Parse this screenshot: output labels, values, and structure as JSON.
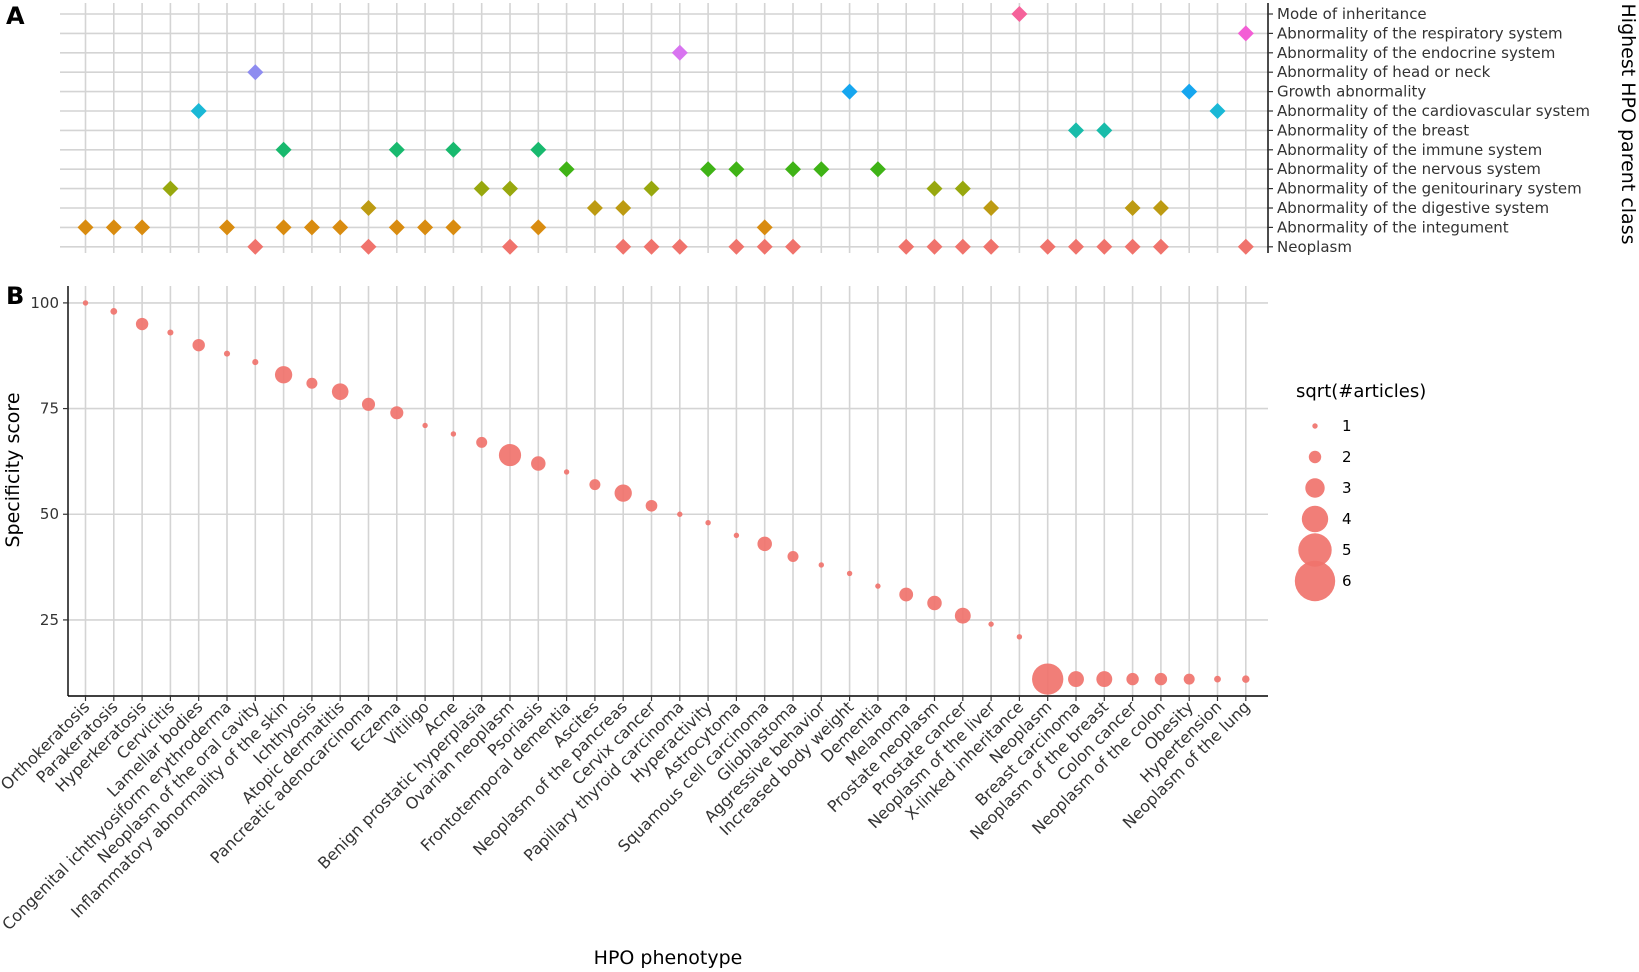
{
  "chart_data": [
    {
      "panel": "A",
      "type": "scatter",
      "title": "",
      "xlabel": "",
      "ylabel": "Highest HPO parent class",
      "categories": [
        "Orthokeratosis",
        "Parakeratosis",
        "Hyperkeratosis",
        "Cervicitis",
        "Lamellar bodies",
        "Congenital ichthyosiform erythroderma",
        "Neoplasm of the oral cavity",
        "Inflammatory abnormality of the skin",
        "Ichthyosis",
        "Atopic dermatitis",
        "Pancreatic adenocarcinoma",
        "Eczema",
        "Vitiligo",
        "Acne",
        "Benign prostatic hyperplasia",
        "Ovarian neoplasm",
        "Psoriasis",
        "Frontotemporal dementia",
        "Ascites",
        "Neoplasm of the pancreas",
        "Cervix cancer",
        "Papillary thyroid carcinoma",
        "Hyperactivity",
        "Astrocytoma",
        "Squamous cell carcinoma",
        "Glioblastoma",
        "Aggressive behavior",
        "Increased body weight",
        "Dementia",
        "Melanoma",
        "Prostate neoplasm",
        "Prostate cancer",
        "Neoplasm of the liver",
        "X-linked inheritance",
        "Neoplasm",
        "Breast carcinoma",
        "Neoplasm of the breast",
        "Colon cancer",
        "Neoplasm of the colon",
        "Obesity",
        "Hypertension",
        "Neoplasm of the lung"
      ],
      "classes": [
        "Neoplasm",
        "Abnormality of the integument",
        "Abnormality of the digestive system",
        "Abnormality of the genitourinary system",
        "Abnormality of the nervous system",
        "Abnormality of the immune system",
        "Abnormality of the breast",
        "Abnormality of the cardiovascular system",
        "Growth abnormality",
        "Abnormality of head or neck",
        "Abnormality of the endocrine system",
        "Abnormality of the respiratory system",
        "Mode of inheritance"
      ],
      "class_colors": [
        "#f0736c",
        "#d98c10",
        "#bd9b12",
        "#98a80e",
        "#3fb316",
        "#18b96e",
        "#19bcaa",
        "#1ab8d6",
        "#16a6ef",
        "#8e8cf0",
        "#d874f0",
        "#f35ed5",
        "#f5629a"
      ],
      "points": [
        {
          "x": 0,
          "y": 1
        },
        {
          "x": 1,
          "y": 1
        },
        {
          "x": 2,
          "y": 1
        },
        {
          "x": 3,
          "y": 3
        },
        {
          "x": 4,
          "y": 7
        },
        {
          "x": 5,
          "y": 1
        },
        {
          "x": 6,
          "y": 0
        },
        {
          "x": 6,
          "y": 9
        },
        {
          "x": 7,
          "y": 1
        },
        {
          "x": 7,
          "y": 5
        },
        {
          "x": 8,
          "y": 1
        },
        {
          "x": 9,
          "y": 1
        },
        {
          "x": 10,
          "y": 0
        },
        {
          "x": 10,
          "y": 2
        },
        {
          "x": 11,
          "y": 1
        },
        {
          "x": 11,
          "y": 5
        },
        {
          "x": 12,
          "y": 1
        },
        {
          "x": 13,
          "y": 1
        },
        {
          "x": 13,
          "y": 5
        },
        {
          "x": 14,
          "y": 3
        },
        {
          "x": 15,
          "y": 0
        },
        {
          "x": 15,
          "y": 3
        },
        {
          "x": 16,
          "y": 1
        },
        {
          "x": 16,
          "y": 5
        },
        {
          "x": 17,
          "y": 4
        },
        {
          "x": 18,
          "y": 2
        },
        {
          "x": 19,
          "y": 0
        },
        {
          "x": 19,
          "y": 2
        },
        {
          "x": 20,
          "y": 0
        },
        {
          "x": 20,
          "y": 3
        },
        {
          "x": 21,
          "y": 0
        },
        {
          "x": 21,
          "y": 10
        },
        {
          "x": 22,
          "y": 4
        },
        {
          "x": 23,
          "y": 0
        },
        {
          "x": 23,
          "y": 4
        },
        {
          "x": 24,
          "y": 0
        },
        {
          "x": 24,
          "y": 1
        },
        {
          "x": 25,
          "y": 0
        },
        {
          "x": 25,
          "y": 4
        },
        {
          "x": 26,
          "y": 4
        },
        {
          "x": 27,
          "y": 8
        },
        {
          "x": 28,
          "y": 4
        },
        {
          "x": 29,
          "y": 0
        },
        {
          "x": 30,
          "y": 0
        },
        {
          "x": 30,
          "y": 3
        },
        {
          "x": 31,
          "y": 0
        },
        {
          "x": 31,
          "y": 3
        },
        {
          "x": 32,
          "y": 0
        },
        {
          "x": 32,
          "y": 2
        },
        {
          "x": 33,
          "y": 12
        },
        {
          "x": 34,
          "y": 0
        },
        {
          "x": 35,
          "y": 0
        },
        {
          "x": 35,
          "y": 6
        },
        {
          "x": 36,
          "y": 0
        },
        {
          "x": 36,
          "y": 6
        },
        {
          "x": 37,
          "y": 0
        },
        {
          "x": 37,
          "y": 2
        },
        {
          "x": 38,
          "y": 0
        },
        {
          "x": 38,
          "y": 2
        },
        {
          "x": 39,
          "y": 8
        },
        {
          "x": 40,
          "y": 7
        },
        {
          "x": 41,
          "y": 0
        },
        {
          "x": 41,
          "y": 11
        }
      ]
    },
    {
      "panel": "B",
      "type": "scatter",
      "title": "",
      "xlabel": "HPO phenotype",
      "ylabel": "Specificity score",
      "ylim": [
        7,
        104
      ],
      "yticks": [
        25,
        50,
        75,
        100
      ],
      "point_color": "#f0736c",
      "values": [
        100,
        98,
        95,
        93,
        90,
        88,
        86,
        83,
        81,
        79,
        76,
        74,
        71,
        69,
        67,
        64,
        62,
        60,
        57,
        55,
        52,
        50,
        48,
        45,
        43,
        40,
        38,
        36,
        33,
        31,
        29,
        26,
        24,
        21,
        11,
        11,
        11,
        11,
        11,
        11,
        11,
        11
      ],
      "sizes": [
        1,
        1.2,
        2,
        1.1,
        2,
        1.1,
        1.1,
        2.7,
        1.8,
        2.6,
        2.1,
        2.1,
        1,
        1,
        1.8,
        3.4,
        2.3,
        1,
        1.8,
        2.7,
        1.9,
        1,
        1,
        1,
        2.3,
        1.8,
        1,
        1,
        1,
        2.2,
        2.3,
        2.5,
        1,
        1,
        4.7,
        2.5,
        2.5,
        2,
        2,
        1.8,
        1.2,
        1.3
      ],
      "legend": {
        "title": "sqrt(#articles)",
        "position": "right",
        "labels": [
          "1",
          "2",
          "3",
          "4",
          "5",
          "6"
        ],
        "values": [
          1,
          2,
          3,
          4,
          5,
          6
        ]
      }
    }
  ]
}
